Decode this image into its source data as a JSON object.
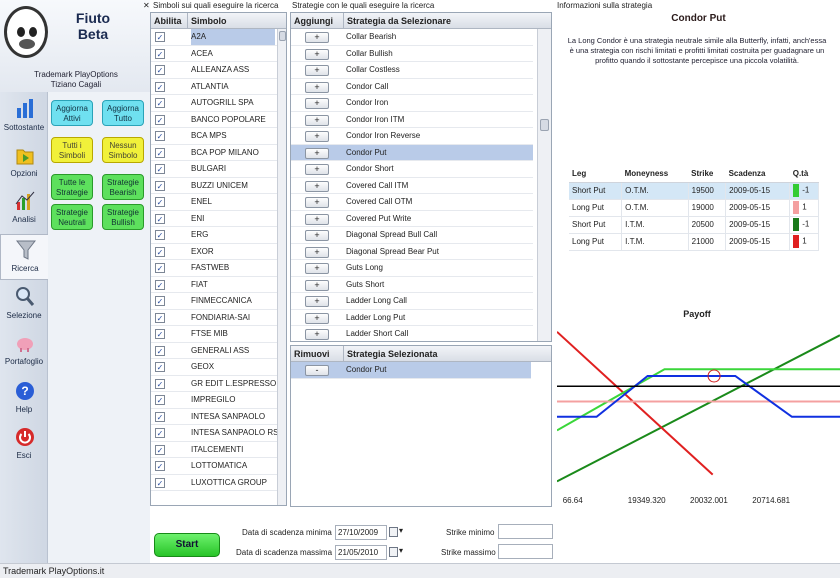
{
  "app": {
    "title": "Fiuto\nBeta",
    "trademark": "Trademark PlayOptions\nTiziano Cagali"
  },
  "nav": [
    {
      "label": "Sottostante",
      "icon": "bar-chart-icon"
    },
    {
      "label": "Opzioni",
      "icon": "folder-icon"
    },
    {
      "label": "Analisi",
      "icon": "analysis-chart-icon"
    },
    {
      "label": "Ricerca",
      "icon": "funnel-icon"
    },
    {
      "label": "Selezione",
      "icon": "magnifier-icon"
    },
    {
      "label": "Portafoglio",
      "icon": "piggy-bank-icon"
    },
    {
      "label": "Help",
      "icon": "help-icon"
    },
    {
      "label": "Esci",
      "icon": "power-icon"
    }
  ],
  "quick": {
    "aggiorna_attivi": "Aggiorna Attivi",
    "aggiorna_tutto": "Aggiorna Tutto",
    "tutti_simboli": "Tutti i Simboli",
    "nessun_simbolo": "Nessun Simbolo",
    "tutte_strategie": "Tutte le Strategie",
    "strategie_bearish": "Strategie Bearish",
    "strategie_neutrali": "Strategie Neutrali",
    "strategie_bullish": "Strategie Bullish"
  },
  "symbols": {
    "pane_title": "Simboli sui quali eseguire la ricerca",
    "col_abilita": "Abilita",
    "col_simbolo": "Simbolo",
    "items": [
      "A2A",
      "ACEA",
      "ALLEANZA ASS",
      "ATLANTIA",
      "AUTOGRILL SPA",
      "BANCO POPOLARE",
      "BCA MPS",
      "BCA POP MILANO",
      "BULGARI",
      "BUZZI UNICEM",
      "ENEL",
      "ENI",
      "ERG",
      "EXOR",
      "FASTWEB",
      "FIAT",
      "FINMECCANICA",
      "FONDIARIA-SAI",
      "FTSE MIB",
      "GENERALI ASS",
      "GEOX",
      "GR EDIT L.ESPRESSO",
      "IMPREGILO",
      "INTESA SANPAOLO",
      "INTESA SANPAOLO RSP",
      "ITALCEMENTI",
      "LOTTOMATICA",
      "LUXOTTICA GROUP"
    ],
    "check_glyph": "✓"
  },
  "strategies": {
    "pane_title": "Strategie con le quali eseguire la ricerca",
    "col_aggiungi": "Aggiungi",
    "col_strategia": "Strategia da Selezionare",
    "add_glyph": "+",
    "items": [
      "Collar Bearish",
      "Collar Bullish",
      "Collar Costless",
      "Condor Call",
      "Condor Iron",
      "Condor Iron ITM",
      "Condor Iron Reverse",
      "Condor Put",
      "Condor Short",
      "Covered Call ITM",
      "Covered Call OTM",
      "Covered Put Write",
      "Diagonal Spread  Bull Call",
      "Diagonal Spread Bear Put",
      "Guts Long",
      "Guts Short",
      "Ladder Long Call",
      "Ladder Long Put",
      "Ladder Short Call"
    ]
  },
  "selected": {
    "col_rimuovi": "Rimuovi",
    "col_strategia": "Strategia Selezionata",
    "remove_glyph": "-",
    "items": [
      "Condor Put"
    ]
  },
  "info": {
    "pane_title": "Informazioni sulla strategia",
    "strategy_name": "Condor Put",
    "description": "La Long Condor è una strategia neutrale simile alla Butterfly, infatti, anch'essa è una strategia con rischi limitati e profitti limitati costruita per guadagnare un profitto quando il sottostante percepisce una piccola volatilità.",
    "legs_headers": [
      "Leg",
      "Moneyness",
      "Strike",
      "Scadenza",
      "Q.tà"
    ],
    "legs": [
      {
        "leg": "Short Put",
        "moneyness": "O.T.M.",
        "strike": "19500",
        "scadenza": "2009-05-15",
        "qta": "-1",
        "color": "#33cc33"
      },
      {
        "leg": "Long Put",
        "moneyness": "O.T.M.",
        "strike": "19000",
        "scadenza": "2009-05-15",
        "qta": "1",
        "color": "#f4a0a0"
      },
      {
        "leg": "Short Put",
        "moneyness": "I.T.M.",
        "strike": "20500",
        "scadenza": "2009-05-15",
        "qta": "-1",
        "color": "#1a7a1a"
      },
      {
        "leg": "Long Put",
        "moneyness": "I.T.M.",
        "strike": "21000",
        "scadenza": "2009-05-15",
        "qta": "1",
        "color": "#e02020"
      }
    ]
  },
  "chart_data": {
    "type": "line",
    "title": "Payoff",
    "xlabel": "",
    "ylabel": "",
    "x_tick_labels": [
      "66.64",
      "19349.320",
      "20032.001",
      "20714.681"
    ],
    "grid": false,
    "series": [
      {
        "color": "#1a8a1a",
        "points": [
          [
            0,
            0.08
          ],
          [
            1,
            0.94
          ]
        ]
      },
      {
        "color": "#e02020",
        "points": [
          [
            0,
            0.96
          ],
          [
            0.55,
            0.12
          ]
        ]
      },
      {
        "color": "#3ad63a",
        "points": [
          [
            0,
            0.38
          ],
          [
            0.38,
            0.74
          ],
          [
            1,
            0.74
          ]
        ]
      },
      {
        "color": "#f4a0a0",
        "points": [
          [
            0,
            0.55
          ],
          [
            1,
            0.55
          ]
        ]
      },
      {
        "color": "#1030e0",
        "points": [
          [
            0,
            0.46
          ],
          [
            0.14,
            0.46
          ],
          [
            0.32,
            0.7
          ],
          [
            0.63,
            0.7
          ],
          [
            0.83,
            0.46
          ],
          [
            1,
            0.46
          ]
        ]
      },
      {
        "color": "#000000",
        "points": [
          [
            0,
            0.64
          ],
          [
            1,
            0.64
          ]
        ]
      }
    ]
  },
  "form": {
    "data_min_label": "Data di scadenza minima",
    "data_min_value": "27/10/2009",
    "data_max_label": "Data di scadenza massima",
    "data_max_value": "21/05/2010",
    "strike_min_label": "Strike minimo",
    "strike_max_label": "Strike massimo",
    "start_label": "Start"
  },
  "status": "Trademark PlayOptions.it"
}
